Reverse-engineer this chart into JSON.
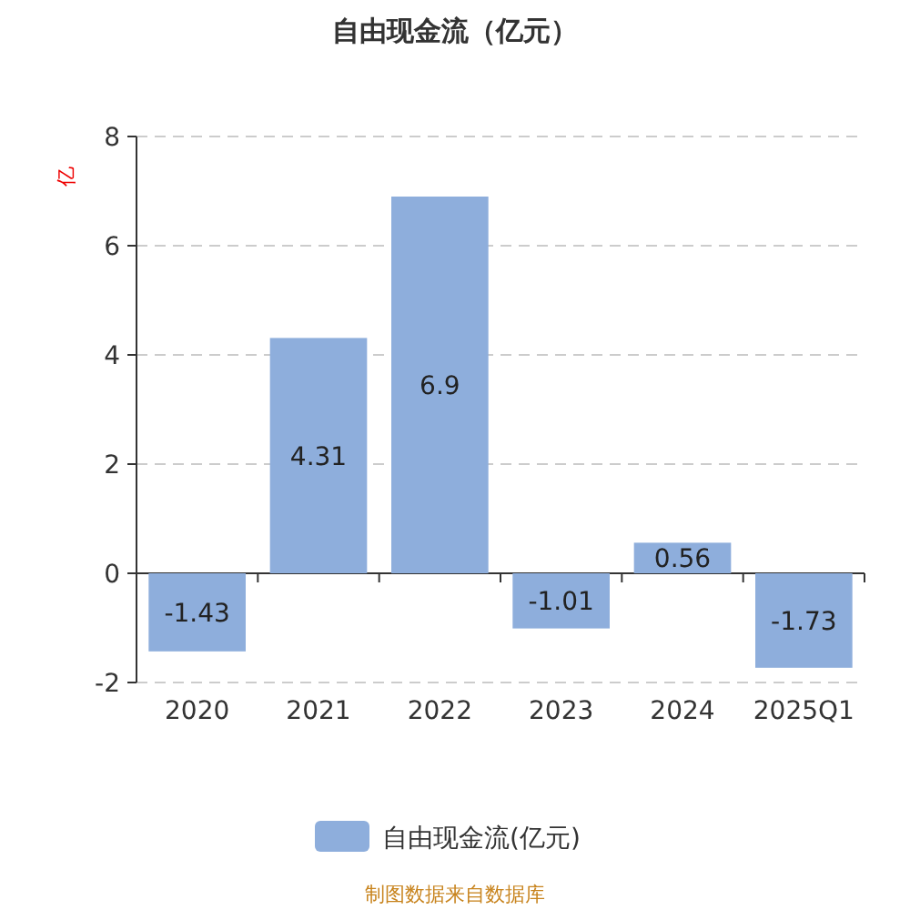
{
  "chart_data": {
    "type": "bar",
    "title": "自由现金流（亿元）",
    "ylabel": "亿",
    "categories": [
      "2020",
      "2021",
      "2022",
      "2023",
      "2024",
      "2025Q1"
    ],
    "series": [
      {
        "name": "自由现金流(亿元)",
        "color": "#8eaedc",
        "values": [
          -1.43,
          4.31,
          6.9,
          -1.01,
          0.56,
          -1.73
        ]
      }
    ],
    "ylim": [
      -2,
      8
    ],
    "yticks": [
      -2,
      0,
      2,
      4,
      6,
      8
    ],
    "grid": "y",
    "legend": "bottom",
    "data_labels": true,
    "annotations": [
      "制图数据来自数据库"
    ]
  }
}
